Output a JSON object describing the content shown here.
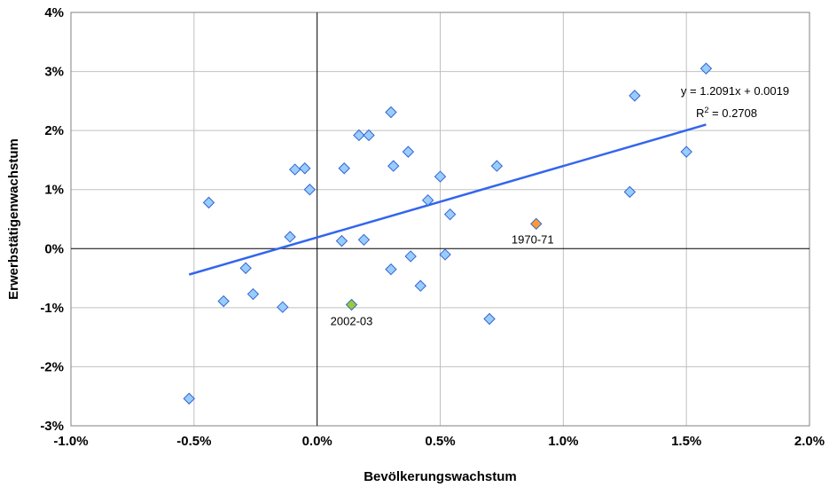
{
  "chart_data": {
    "type": "scatter",
    "xlabel": "Bevölkerungswachstum",
    "ylabel": "Erwerbstätigenwachstum",
    "xlim": [
      -0.01,
      0.02
    ],
    "ylim": [
      -0.03,
      0.04
    ],
    "x_ticks": [
      -0.01,
      -0.005,
      0,
      0.005,
      0.01,
      0.015,
      0.02
    ],
    "x_tick_labels": [
      "-1.0%",
      "-0.5%",
      "0.0%",
      "0.5%",
      "1.0%",
      "1.5%",
      "2.0%"
    ],
    "y_ticks": [
      -0.03,
      -0.02,
      -0.01,
      0,
      0.01,
      0.02,
      0.03,
      0.04
    ],
    "y_tick_labels": [
      "-3%",
      "-2%",
      "-1%",
      "0%",
      "1%",
      "2%",
      "3%",
      "4%"
    ],
    "grid": true,
    "colors": {
      "point_fill": "#99ccff",
      "point_stroke": "#3366cc",
      "highlight_orange": "#ff9933",
      "highlight_green": "#99cc33",
      "trendline": "#3366ee",
      "grid": "#c0c0c0"
    },
    "series": [
      {
        "points": [
          [
            -0.0052,
            -0.0254
          ],
          [
            -0.0044,
            0.0078
          ],
          [
            -0.0038,
            -0.0089
          ],
          [
            -0.0029,
            -0.0033
          ],
          [
            -0.0026,
            -0.0077
          ],
          [
            -0.0014,
            -0.0099
          ],
          [
            -0.0011,
            0.002
          ],
          [
            -0.0009,
            0.0134
          ],
          [
            -0.0005,
            0.0136
          ],
          [
            -0.0003,
            0.01
          ],
          [
            0.0011,
            0.0136
          ],
          [
            0.001,
            0.0013
          ],
          [
            0.0017,
            0.0192
          ],
          [
            0.0019,
            0.0015
          ],
          [
            0.0021,
            0.0192
          ],
          [
            0.003,
            0.0231
          ],
          [
            0.0031,
            0.014
          ],
          [
            0.003,
            -0.0035
          ],
          [
            0.0037,
            0.0164
          ],
          [
            0.0038,
            -0.0013
          ],
          [
            0.0042,
            -0.0063
          ],
          [
            0.0045,
            0.0082
          ],
          [
            0.005,
            0.0122
          ],
          [
            0.0052,
            -0.001
          ],
          [
            0.0054,
            0.0058
          ],
          [
            0.007,
            -0.0119
          ],
          [
            0.0073,
            0.014
          ],
          [
            0.0127,
            0.0096
          ],
          [
            0.0129,
            0.0259
          ],
          [
            0.015,
            0.0164
          ],
          [
            0.0158,
            0.0305
          ]
        ]
      }
    ],
    "highlights": [
      {
        "label": "1970-71",
        "x": 0.0089,
        "y": 0.0042,
        "color": "#ff9933"
      },
      {
        "label": "2002-03",
        "x": 0.0014,
        "y": -0.0095,
        "color": "#99cc33"
      }
    ],
    "trendline": {
      "slope": 1.2091,
      "intercept": 0.0019,
      "x_range": [
        -0.0052,
        0.0158
      ],
      "equation_label": "y = 1.2091x + 0.0019",
      "r2_prefix": "R",
      "r2_exp": "2",
      "r2_suffix": " = 0.2708"
    }
  }
}
